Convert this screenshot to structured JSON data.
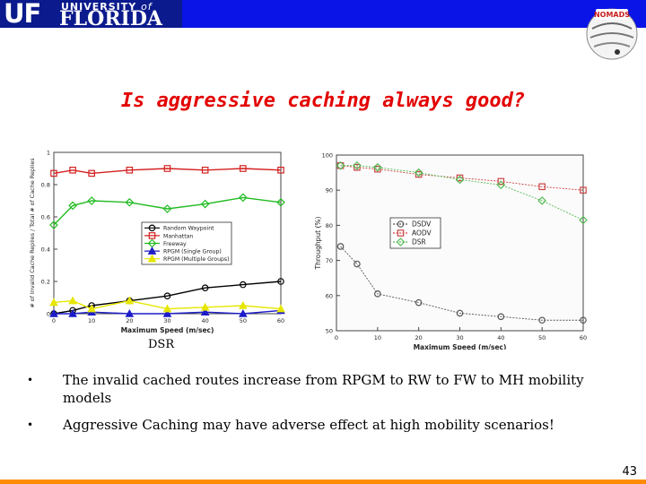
{
  "header": {
    "logo_uf": "UF",
    "logo_university": "UNIVERSITY",
    "logo_of": "of",
    "logo_florida": "FLORIDA",
    "nomads_badge": "NOMADS"
  },
  "title": "Is aggressive caching always good?",
  "caption": "DSR",
  "bullets": [
    "The invalid cached routes increase from RPGM to RW to FW to MH mobility models",
    "Aggressive Caching may have adverse effect at high mobility scenarios!"
  ],
  "page_number": "43",
  "colors": {
    "top_bar": "#0a14e6",
    "bottom_bar": "#ff8c00",
    "title": "#e30000"
  },
  "chart_data": [
    {
      "type": "line",
      "xlabel": "Maximum Speed (m/sec)",
      "ylabel": "# of Invalid Cache Replies / Total # of Cache Replies",
      "xlim": [
        0,
        60
      ],
      "ylim": [
        0,
        1
      ],
      "x_ticks": [
        "0",
        "10",
        "20",
        "30",
        "40",
        "50",
        "60"
      ],
      "y_ticks": [
        "0",
        "0.2",
        "0.4",
        "0.6",
        "0.8",
        "1"
      ],
      "legend_position": "center",
      "series": [
        {
          "name": "Random Waypoint",
          "color": "#000000",
          "marker": "circle",
          "x": [
            0,
            5,
            10,
            20,
            30,
            40,
            50,
            60
          ],
          "y": [
            0.0,
            0.02,
            0.05,
            0.08,
            0.11,
            0.16,
            0.18,
            0.2
          ]
        },
        {
          "name": "Manhattan",
          "color": "#d42020",
          "marker": "square",
          "x": [
            0,
            5,
            10,
            20,
            30,
            40,
            50,
            60
          ],
          "y": [
            0.87,
            0.89,
            0.87,
            0.89,
            0.9,
            0.89,
            0.9,
            0.89
          ]
        },
        {
          "name": "Freeway",
          "color": "#22bb22",
          "marker": "diamond",
          "x": [
            0,
            5,
            10,
            20,
            30,
            40,
            50,
            60
          ],
          "y": [
            0.55,
            0.67,
            0.7,
            0.69,
            0.65,
            0.68,
            0.72,
            0.69
          ]
        },
        {
          "name": "RPGM (Single Group)",
          "color": "#1c1cc8",
          "marker": "triangle",
          "x": [
            0,
            5,
            10,
            20,
            30,
            40,
            50,
            60
          ],
          "y": [
            0.0,
            0.0,
            0.01,
            0.0,
            0.0,
            0.01,
            0.0,
            0.02
          ]
        },
        {
          "name": "RPGM (Multiple Groups)",
          "color": "#e6e600",
          "marker": "triangle",
          "x": [
            0,
            5,
            10,
            20,
            30,
            40,
            50,
            60
          ],
          "y": [
            0.07,
            0.08,
            0.03,
            0.08,
            0.03,
            0.04,
            0.05,
            0.03
          ]
        }
      ]
    },
    {
      "type": "line",
      "xlabel": "Maximum Speed (m/sec)",
      "ylabel": "Throughput (%)",
      "xlim": [
        0,
        60
      ],
      "ylim": [
        50,
        100
      ],
      "x_ticks": [
        "0",
        "10",
        "20",
        "30",
        "40",
        "50",
        "60"
      ],
      "y_ticks": [
        "50",
        "60",
        "70",
        "80",
        "90",
        "100"
      ],
      "legend_position": "center-left",
      "series": [
        {
          "name": "DSDV",
          "color": "#555555",
          "marker": "circle",
          "x": [
            1,
            5,
            10,
            20,
            30,
            40,
            50,
            60
          ],
          "y": [
            74,
            69,
            60.5,
            58,
            55,
            54,
            53,
            53
          ]
        },
        {
          "name": "AODV",
          "color": "#cc4444",
          "marker": "square",
          "x": [
            1,
            5,
            10,
            20,
            30,
            40,
            50,
            60
          ],
          "y": [
            97,
            96.5,
            96,
            94.5,
            93.5,
            92.5,
            91,
            90
          ]
        },
        {
          "name": "DSR",
          "color": "#55bb55",
          "marker": "diamond",
          "x": [
            1,
            5,
            10,
            20,
            30,
            40,
            50,
            60
          ],
          "y": [
            97,
            97,
            96.5,
            95,
            93,
            91.5,
            87,
            81.5
          ]
        }
      ]
    }
  ]
}
